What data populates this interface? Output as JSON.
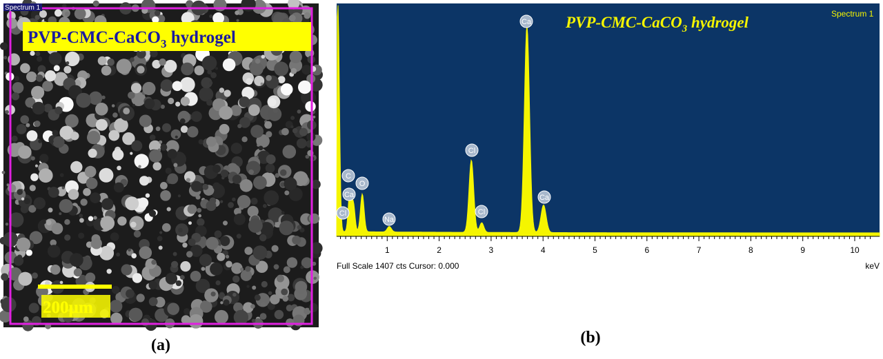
{
  "panel_a": {
    "label": "(a)",
    "image_tag": "Spectrum 1",
    "title": [
      "PVP-CMC-CaCO",
      "3",
      " hydrogel"
    ],
    "scale_bar": "200µm"
  },
  "panel_b": {
    "label": "(b)",
    "spectrum_tag": "Spectrum 1",
    "title": [
      "PVP-CMC-CaCO",
      "3",
      " hydrogel"
    ],
    "peaks": [
      "Cl",
      "Ca",
      "C",
      "O",
      "Na",
      "Cl",
      "Cl",
      "Ca",
      "Ca"
    ],
    "x_ticks": [
      "1",
      "2",
      "3",
      "4",
      "5",
      "6",
      "7",
      "8",
      "9",
      "10"
    ],
    "x_unit": "keV",
    "footer": "Full Scale 1407 cts Cursor: 0.000"
  }
}
